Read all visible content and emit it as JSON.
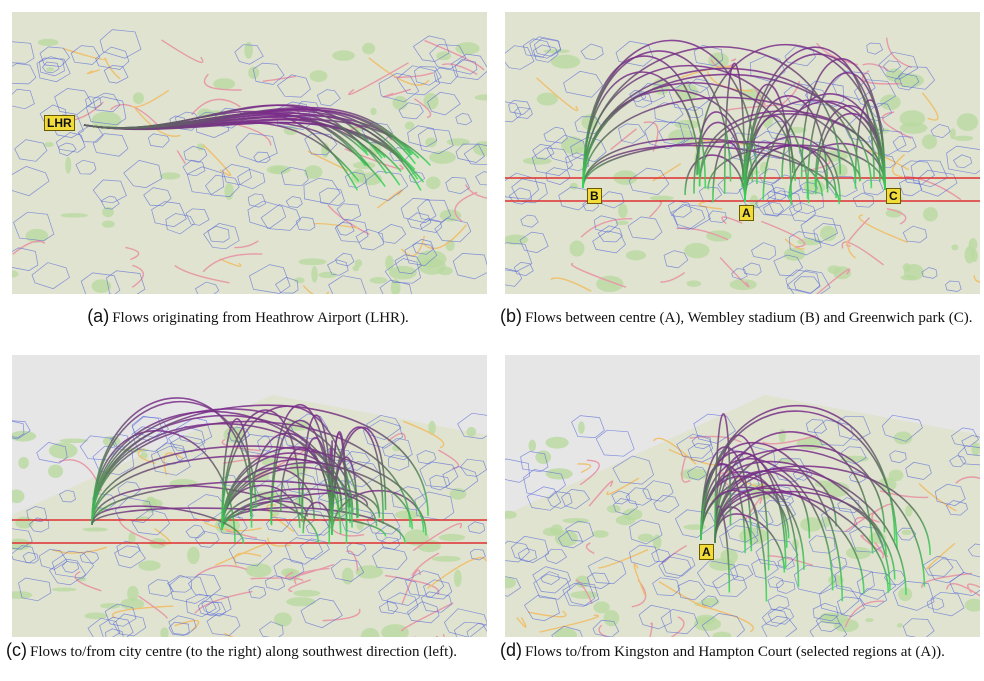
{
  "panels": [
    {
      "label": "(a)",
      "caption": "Flows originating from Heathrow Airport (LHR).",
      "markers": [
        "LHR"
      ]
    },
    {
      "label": "(b)",
      "caption": "Flows between centre (A), Wembley stadium (B) and Greenwich park (C).",
      "markers": [
        "B",
        "A",
        "C"
      ]
    },
    {
      "label": "(c)",
      "caption": "Flows to/from city centre (to the right) along southwest direction (left).",
      "markers": []
    },
    {
      "label": "(d)",
      "caption": "Flows to/from Kingston and Hampton Court (selected regions at (A)).",
      "markers": [
        "A"
      ]
    }
  ]
}
